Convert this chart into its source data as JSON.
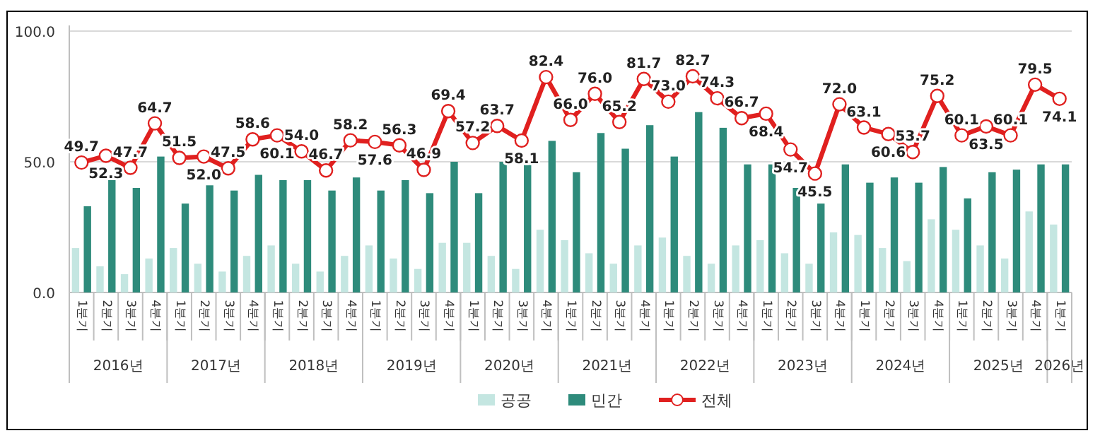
{
  "chart_data": {
    "type": "bar",
    "categories": [
      "1분기",
      "2분기",
      "3분기",
      "4분기",
      "1분기",
      "2분기",
      "3분기",
      "4분기",
      "1분기",
      "2분기",
      "3분기",
      "4분기",
      "1분기",
      "2분기",
      "3분기",
      "4분기",
      "1분기",
      "2분기",
      "3분기",
      "4분기",
      "1분기",
      "2분기",
      "3분기",
      "4분기",
      "1분기",
      "2분기",
      "3분기",
      "4분기",
      "1분기",
      "2분기",
      "3분기",
      "4분기",
      "1분기",
      "2분기",
      "3분기",
      "4분기",
      "1분기",
      "2분기",
      "3분기",
      "4분기",
      "1분기"
    ],
    "series": [
      {
        "name": "공공",
        "color": "#c4e6e1",
        "values": [
          17,
          10,
          7,
          13,
          17,
          11,
          8,
          14,
          18,
          11,
          8,
          14,
          18,
          13,
          9,
          19,
          19,
          14,
          9,
          24,
          20,
          15,
          11,
          18,
          21,
          14,
          11,
          18,
          20,
          15,
          11,
          23,
          22,
          17,
          12,
          28,
          24,
          18,
          13,
          31,
          26
        ]
      },
      {
        "name": "민간",
        "color": "#2e8b7b",
        "values": [
          33,
          43,
          40,
          52,
          34,
          41,
          39,
          45,
          43,
          43,
          39,
          44,
          39,
          43,
          38,
          50,
          38,
          50,
          49,
          58,
          46,
          61,
          55,
          64,
          52,
          69,
          63,
          49,
          49,
          40,
          34,
          49,
          42,
          44,
          42,
          48,
          36,
          46,
          47,
          49,
          49
        ]
      },
      {
        "name": "전체",
        "type": "line",
        "color": "#e0201f",
        "marker": "circle",
        "values": [
          49.7,
          52.3,
          47.7,
          64.7,
          51.5,
          52.0,
          47.5,
          58.6,
          60.1,
          54.0,
          46.7,
          58.2,
          57.6,
          56.3,
          46.9,
          69.4,
          57.2,
          63.7,
          58.1,
          82.4,
          66.0,
          76.0,
          65.2,
          81.7,
          73.0,
          82.7,
          74.3,
          66.7,
          68.4,
          54.7,
          45.5,
          72.0,
          63.1,
          60.6,
          53.7,
          75.2,
          60.1,
          63.5,
          60.1,
          79.5,
          74.1
        ],
        "value_labels": [
          "49.7",
          "52.3",
          "47.7",
          "64.7",
          "51.5",
          "52.0",
          "47.5",
          "58.6",
          "60.1",
          "54.0",
          "46.7",
          "58.2",
          "57.6",
          "56.3",
          "46.9",
          "69.4",
          "57.2",
          "63.7",
          "58.1",
          "82.4",
          "66.0",
          "76.0",
          "65.2",
          "81.7",
          "73.0",
          "82.7",
          "74.3",
          "66.7",
          "68.4",
          "54.7",
          "45.5",
          "72.0",
          "63.1",
          "60.6",
          "53.7",
          "75.2",
          "60.1",
          "63.5",
          "60.1",
          "79.5",
          "74.1"
        ]
      }
    ],
    "annotations": [
      "2016년",
      "2017년",
      "2018년",
      "2019년",
      "2020년",
      "2021년",
      "2022년",
      "2023년",
      "2024년",
      "2025년",
      "2026년"
    ],
    "ylim": [
      0,
      100
    ],
    "yticks": [
      {
        "value": 0,
        "label": "0.0"
      },
      {
        "value": 50,
        "label": "50.0"
      },
      {
        "value": 100,
        "label": "100.0"
      }
    ],
    "grid": "y",
    "legend": "bottom"
  }
}
